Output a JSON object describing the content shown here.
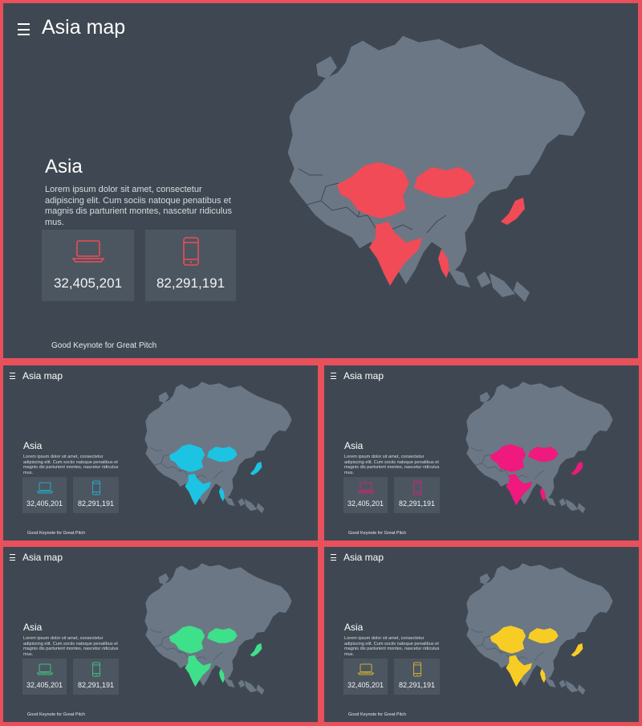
{
  "slides": [
    {
      "title": "Asia map",
      "region": "Asia",
      "description": "Lorem ipsum dolor sit amet, consectetur adipiscing elit. Cum sociis natoque penatibus et magnis dis parturient montes, nascetur ridiculus mus.",
      "stats": [
        {
          "icon": "laptop-icon",
          "value": "32,405,201"
        },
        {
          "icon": "smartphone-icon",
          "value": "82,291,191"
        }
      ],
      "footer": "Good Keynote for Great Pitch",
      "accent": "#f04b57"
    },
    {
      "title": "Asia map",
      "region": "Asia",
      "description": "Lorem ipsum dolor sit amet, consectetur adipiscing elit. Cum sociis natoque penatibus et magnis dis parturient montes, nascetur ridiculus mus.",
      "stats": [
        {
          "icon": "laptop-icon",
          "value": "32,405,201"
        },
        {
          "icon": "smartphone-icon",
          "value": "82,291,191"
        }
      ],
      "footer": "Good Keynote for Great Pitch",
      "accent": "#1cc3e3"
    },
    {
      "title": "Asia map",
      "region": "Asia",
      "description": "Lorem ipsum dolor sit amet, consectetur adipiscing elit. Cum sociis natoque penatibus et magnis dis parturient montes, nascetur ridiculus mus.",
      "stats": [
        {
          "icon": "laptop-icon",
          "value": "32,405,201"
        },
        {
          "icon": "smartphone-icon",
          "value": "82,291,191"
        }
      ],
      "footer": "Good Keynote for Great Pitch",
      "accent": "#f0197d"
    },
    {
      "title": "Asia map",
      "region": "Asia",
      "description": "Lorem ipsum dolor sit amet, consectetur adipiscing elit. Cum sociis natoque penatibus et magnis dis parturient montes, nascetur ridiculus mus.",
      "stats": [
        {
          "icon": "laptop-icon",
          "value": "32,405,201"
        },
        {
          "icon": "smartphone-icon",
          "value": "82,291,191"
        }
      ],
      "footer": "Good Keynote for Great Pitch",
      "accent": "#3ee08a"
    },
    {
      "title": "Asia map",
      "region": "Asia",
      "description": "Lorem ipsum dolor sit amet, consectetur adipiscing elit. Cum sociis natoque penatibus et magnis dis parturient montes, nascetur ridiculus mus.",
      "stats": [
        {
          "icon": "laptop-icon",
          "value": "32,405,201"
        },
        {
          "icon": "smartphone-icon",
          "value": "82,291,191"
        }
      ],
      "footer": "Good Keynote for Great Pitch",
      "accent": "#f7cd25"
    }
  ],
  "colors": {
    "border": "#e8505b",
    "slide_bg": "#3f4852",
    "land": "#6b7785",
    "stat_bg": "#4c5661"
  }
}
